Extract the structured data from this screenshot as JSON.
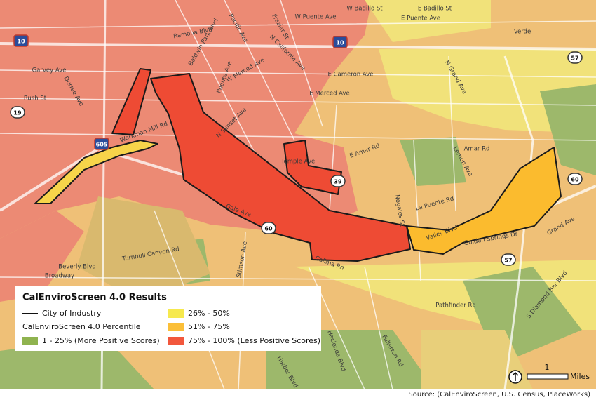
{
  "legend": {
    "title": "CalEnviroScreen 4.0 Results",
    "boundary_label": "City of Industry",
    "heading": "CalEnviroScreen 4.0 Percentile",
    "items": [
      {
        "label": "1 - 25% (More Positive Scores)",
        "color": "#8fb34f"
      },
      {
        "label": "26% - 50%",
        "color": "#f6e94e"
      },
      {
        "label": "51% - 75%",
        "color": "#fbbf38"
      },
      {
        "label": "75% - 100% (Less Positive Scores)",
        "color": "#f2573c"
      }
    ]
  },
  "scale": {
    "value": "1",
    "unit": "Miles"
  },
  "source": "Source: (CalEnviroScreen, U.S. Census, PlaceWorks)",
  "highway_shields": [
    "10",
    "10",
    "605",
    "19",
    "39",
    "60",
    "60",
    "57",
    "57"
  ],
  "street_labels": [
    "Ramona Blvd",
    "Baldwin Park Blvd",
    "Pacific Ave",
    "Frazier St",
    "W Badillo St",
    "E Badillo St",
    "W Puente Ave",
    "E Puente Ave",
    "Garvey Ave",
    "W Merced Ave",
    "N California Ave",
    "E Cameron Ave",
    "E Merced Ave",
    "Rush St",
    "Durfee Ave",
    "Workman Mill Rd",
    "Puente Ave",
    "N Sunset Ave",
    "Temple Ave",
    "E Amar Rd",
    "Amar Rd",
    "La Puente Rd",
    "Valley Blvd",
    "Gale Ave",
    "Nogales St",
    "Lemon Ave",
    "Grand Ave",
    "Golden Springs Dr",
    "S Diamond Bar Blvd",
    "Pathfinder Rd",
    "Colima Rd",
    "Hacienda Blvd",
    "Stimson Ave",
    "Turnbull Canyon Rd",
    "Beverly Blvd",
    "Broadway",
    "Fullerton Rd",
    "Harbor Blvd",
    "Verde",
    "N Grand Ave"
  ]
}
